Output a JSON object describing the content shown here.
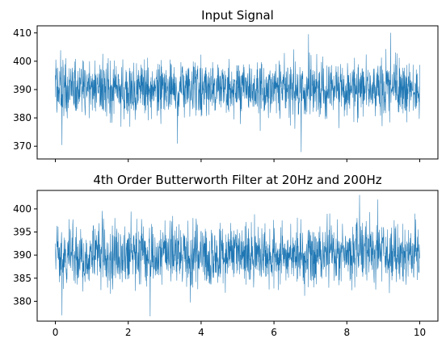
{
  "chart_data": [
    {
      "type": "line",
      "title": "Input Signal",
      "xlabel": "",
      "ylabel": "",
      "xlim": [
        -0.5,
        10.5
      ],
      "ylim": [
        365.5,
        412.5
      ],
      "x_ticks": [
        0,
        2,
        4,
        6,
        8,
        10
      ],
      "x_tick_labels_visible": false,
      "y_ticks": [
        370,
        380,
        390,
        400,
        410
      ],
      "y_tick_labels": [
        "370",
        "380",
        "390",
        "400",
        "410"
      ],
      "grid": false,
      "legend": "none",
      "color": "#1f77b4",
      "series": [
        {
          "x_range": [
            0,
            10
          ],
          "noise_band": {
            "mean": 390,
            "min": 368,
            "max": 410,
            "typical_low": 382,
            "typical_high": 400
          },
          "extreme_points": [
            {
              "x": 0.18,
              "y": 370.5
            },
            {
              "x": 3.35,
              "y": 371
            },
            {
              "x": 6.75,
              "y": 368
            },
            {
              "x": 6.95,
              "y": 409.5
            },
            {
              "x": 9.2,
              "y": 410
            }
          ]
        }
      ]
    },
    {
      "type": "line",
      "title": "4th Order Butterworth Filter at 20Hz and 200Hz",
      "xlabel": "",
      "ylabel": "",
      "xlim": [
        -0.5,
        10.5
      ],
      "ylim": [
        375.7,
        404
      ],
      "x_ticks": [
        0,
        2,
        4,
        6,
        8,
        10
      ],
      "x_tick_labels": [
        "0",
        "2",
        "4",
        "6",
        "8",
        "10"
      ],
      "y_ticks": [
        380,
        385,
        390,
        395,
        400
      ],
      "y_tick_labels": [
        "380",
        "385",
        "390",
        "395",
        "400"
      ],
      "grid": false,
      "legend": "none",
      "color": "#1f77b4",
      "series": [
        {
          "x_range": [
            0,
            10
          ],
          "noise_band": {
            "mean": 390,
            "min": 376.5,
            "max": 403,
            "typical_low": 384,
            "typical_high": 396
          },
          "extreme_points": [
            {
              "x": 0.18,
              "y": 377
            },
            {
              "x": 2.6,
              "y": 376.8
            },
            {
              "x": 8.35,
              "y": 403
            },
            {
              "x": 8.85,
              "y": 402
            }
          ]
        }
      ]
    }
  ]
}
